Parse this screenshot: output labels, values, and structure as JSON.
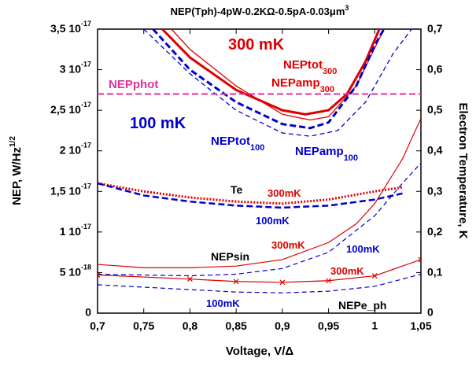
{
  "chart_data": {
    "type": "line",
    "title": {
      "text": "NEP(Tph)-4pW-0.2KΩ-0.5pA-0.03μm",
      "sup": "3"
    },
    "x_label": "Voltage, V/Δ",
    "y_label": {
      "text": "NEP, W/Hz",
      "sup": "1/2"
    },
    "y2_label": "Electron Temperature, K",
    "xlim": [
      0.7,
      1.05
    ],
    "xticks": [
      {
        "value": 0.7,
        "label": "0,7"
      },
      {
        "value": 0.75,
        "label": "0,75"
      },
      {
        "value": 0.8,
        "label": "0,8"
      },
      {
        "value": 0.85,
        "label": "0,85"
      },
      {
        "value": 0.9,
        "label": "0,9"
      },
      {
        "value": 0.95,
        "label": "0,95"
      },
      1,
      {
        "value": 1.05,
        "label": "1,05"
      }
    ],
    "ylim": [
      0,
      3.5e-17
    ],
    "yticks": [
      0,
      {
        "value": 5e-18,
        "label": "5 10",
        "sup": "-18"
      },
      {
        "value": 1e-17,
        "label": "1 10",
        "sup": "-17"
      },
      {
        "value": 1.5e-17,
        "label": "1,5 10",
        "sup": "-17"
      },
      {
        "value": 2e-17,
        "label": "2 10",
        "sup": "-17"
      },
      {
        "value": 2.5e-17,
        "label": "2,5 10",
        "sup": "-17"
      },
      {
        "value": 3e-17,
        "label": "3 10",
        "sup": "-17"
      },
      {
        "value": 3.5e-17,
        "label": "3,5 10",
        "sup": "-17"
      }
    ],
    "y2lim": [
      0,
      0.7
    ],
    "y2ticks": [
      0,
      {
        "value": 0.1,
        "label": "0,1"
      },
      {
        "value": 0.2,
        "label": "0,2"
      },
      {
        "value": 0.3,
        "label": "0,3"
      },
      {
        "value": 0.4,
        "label": "0,4"
      },
      {
        "value": 0.5,
        "label": "0,5"
      },
      {
        "value": 0.6,
        "label": "0,6"
      },
      {
        "value": 0.7,
        "label": "0,7"
      }
    ],
    "grid": false,
    "series": [
      {
        "color": "#dd0000",
        "width": 3,
        "dash": "none",
        "x": [
          0.77,
          0.8,
          0.85,
          0.9,
          0.925,
          0.95,
          0.97,
          0.99,
          1.005
        ],
        "values": [
          3.5e-17,
          3.15e-17,
          2.75e-17,
          2.5e-17,
          2.45e-17,
          2.5e-17,
          2.7e-17,
          3.1e-17,
          3.5e-17
        ]
      },
      {
        "color": "#dd0000",
        "width": 1.3,
        "dash": "none",
        "x": [
          0.78,
          0.8,
          0.85,
          0.9,
          0.93,
          0.95,
          0.98,
          1.01
        ],
        "values": [
          3.5e-17,
          3.25e-17,
          2.8e-17,
          2.45e-17,
          2.38e-17,
          2.42e-17,
          2.8e-17,
          3.5e-17
        ]
      },
      {
        "color": "#0000cc",
        "width": 3,
        "dash": "8,4",
        "x": [
          0.76,
          0.8,
          0.85,
          0.9,
          0.93,
          0.95,
          0.98,
          1.0,
          1.01
        ],
        "values": [
          3.5e-17,
          3e-17,
          2.6e-17,
          2.33e-17,
          2.28e-17,
          2.35e-17,
          2.8e-17,
          3.3e-17,
          3.5e-17
        ]
      },
      {
        "color": "#0000cc",
        "width": 1.3,
        "dash": "6,4",
        "x": [
          0.75,
          0.8,
          0.85,
          0.9,
          0.93,
          0.96,
          0.99,
          1.02,
          1.04
        ],
        "values": [
          3.5e-17,
          2.95e-17,
          2.5e-17,
          2.22e-17,
          2.18e-17,
          2.25e-17,
          2.6e-17,
          3.2e-17,
          3.5e-17
        ]
      },
      {
        "color": "#e0309a",
        "width": 2,
        "dash": "8,4",
        "x": [
          0.7,
          1.05
        ],
        "values": [
          2.7e-17,
          2.7e-17
        ]
      },
      {
        "color": "#dd0000",
        "width": 3,
        "dash": "2,2",
        "axis": "y2",
        "x": [
          0.7,
          0.75,
          0.8,
          0.85,
          0.9,
          0.95,
          1.0,
          1.03
        ],
        "values": [
          0.32,
          0.3,
          0.285,
          0.275,
          0.27,
          0.28,
          0.3,
          0.31
        ]
      },
      {
        "color": "#0000cc",
        "width": 2.5,
        "dash": "8,4",
        "axis": "y2",
        "x": [
          0.7,
          0.75,
          0.8,
          0.85,
          0.9,
          0.95,
          1.0,
          1.03
        ],
        "values": [
          0.32,
          0.29,
          0.275,
          0.265,
          0.26,
          0.265,
          0.28,
          0.295
        ]
      },
      {
        "color": "#dd0000",
        "width": 1.2,
        "dash": "none",
        "x": [
          0.7,
          0.75,
          0.8,
          0.85,
          0.9,
          0.95,
          0.98,
          1.0,
          1.03,
          1.05
        ],
        "values": [
          6e-18,
          5.6e-18,
          5.6e-18,
          5.8e-18,
          6.6e-18,
          8.7e-18,
          1.1e-17,
          1.35e-17,
          1.9e-17,
          2.4e-17
        ]
      },
      {
        "color": "#0000cc",
        "width": 1.2,
        "dash": "6,4",
        "x": [
          0.7,
          0.8,
          0.85,
          0.9,
          0.95,
          1.0,
          1.03,
          1.05
        ],
        "values": [
          4.8e-18,
          4.6e-18,
          4.8e-18,
          5.5e-18,
          7.5e-18,
          1.2e-17,
          1.6e-17,
          1.85e-17
        ]
      },
      {
        "color": "#dd0000",
        "width": 1.2,
        "dash": "none",
        "marker": "x",
        "x": [
          0.7,
          0.8,
          0.85,
          0.9,
          0.95,
          1.0,
          1.05
        ],
        "values": [
          4.7e-18,
          4.2e-18,
          3.9e-18,
          3.8e-18,
          4e-18,
          4.6e-18,
          6.6e-18
        ]
      },
      {
        "color": "#0000cc",
        "width": 1.2,
        "dash": "6,4",
        "x": [
          0.7,
          0.8,
          0.85,
          0.9,
          0.95,
          1.0,
          1.05
        ],
        "values": [
          3.5e-18,
          2.9e-18,
          2.6e-18,
          2.5e-18,
          2.7e-18,
          3.3e-18,
          4.8e-18
        ]
      }
    ],
    "annotations": [
      {
        "text": "300 mK",
        "color": "#dd0000"
      },
      {
        "text": "NEPtot",
        "sub": "300",
        "color": "#dd0000"
      },
      {
        "text": "NEPamp",
        "sub": "300",
        "color": "#dd0000"
      },
      {
        "text": "NEPphot",
        "color": "#e0309a"
      },
      {
        "text": "100 mK",
        "color": "#0000cc"
      },
      {
        "text": "NEPtot",
        "sub": "100",
        "color": "#0000cc"
      },
      {
        "text": "NEPamp",
        "sub": "100",
        "color": "#0000cc"
      },
      {
        "text": "Te",
        "color": "#000000"
      },
      {
        "text": "300mK",
        "color": "#dd0000"
      },
      {
        "text": "100mK",
        "color": "#0000cc"
      },
      {
        "text": "NEPsin",
        "color": "#000000"
      },
      {
        "text": "300mK",
        "color": "#dd0000"
      },
      {
        "text": "100mK",
        "color": "#0000cc"
      },
      {
        "text": "300mK",
        "color": "#dd0000"
      },
      {
        "text": "100mK",
        "color": "#0000cc"
      },
      {
        "text": "NEPe_ph",
        "color": "#000000"
      }
    ]
  }
}
